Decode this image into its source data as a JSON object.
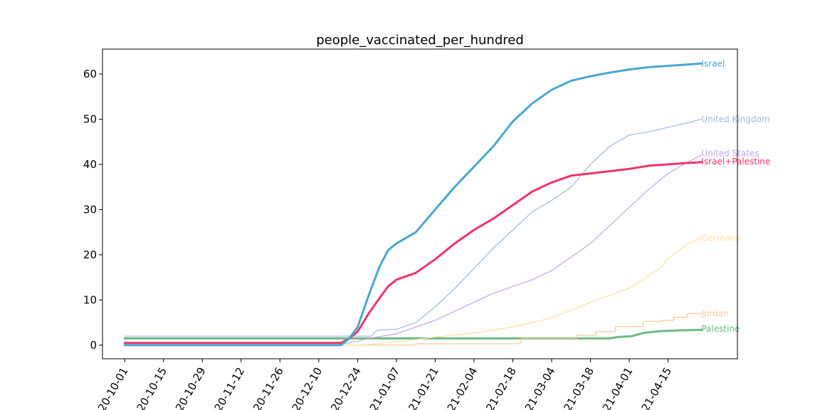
{
  "chart_data": {
    "type": "line",
    "title": "people_vaccinated_per_hundred",
    "xlabel": "",
    "ylabel": "",
    "x_range": [
      "2020-09-23",
      "2021-05-10"
    ],
    "ylim": [
      -3,
      65.5
    ],
    "x_ticks": [
      "2020-10-01",
      "2020-10-15",
      "2020-10-29",
      "2020-11-12",
      "2020-11-26",
      "2020-12-10",
      "2020-12-24",
      "2021-01-07",
      "2021-01-21",
      "2021-02-04",
      "2021-02-18",
      "2021-03-04",
      "2021-03-18",
      "2021-04-01",
      "2021-04-15"
    ],
    "y_ticks": [
      0,
      10,
      20,
      30,
      40,
      50,
      60
    ],
    "grid": false,
    "series": [
      {
        "name": "Palestine",
        "color": "#6dba82",
        "width": 3,
        "step": false,
        "points": [
          [
            "2020-10-01",
            1.5
          ],
          [
            "2021-01-01",
            1.5
          ],
          [
            "2021-02-01",
            1.5
          ],
          [
            "2021-03-10",
            1.5
          ],
          [
            "2021-03-25",
            1.5
          ],
          [
            "2021-03-28",
            1.8
          ],
          [
            "2021-04-02",
            2.0
          ],
          [
            "2021-04-06",
            2.7
          ],
          [
            "2021-04-12",
            3.1
          ],
          [
            "2021-04-20",
            3.3
          ],
          [
            "2021-04-27",
            3.4
          ]
        ]
      },
      {
        "name": "Jordan",
        "color": "#f9c99b",
        "width": 1.2,
        "step": true,
        "points": [
          [
            "2020-10-01",
            0.0
          ],
          [
            "2021-01-14",
            0.3
          ],
          [
            "2021-02-20",
            0.5
          ],
          [
            "2021-02-21",
            1.5
          ],
          [
            "2021-03-05",
            1.5
          ],
          [
            "2021-03-13",
            2.2
          ],
          [
            "2021-03-20",
            3.0
          ],
          [
            "2021-03-27",
            4.1
          ],
          [
            "2021-04-03",
            4.2
          ],
          [
            "2021-04-06",
            5.3
          ],
          [
            "2021-04-13",
            5.5
          ],
          [
            "2021-04-17",
            6.2
          ],
          [
            "2021-04-22",
            7.0
          ],
          [
            "2021-04-27",
            7.0
          ]
        ]
      },
      {
        "name": "Germany",
        "color": "#fde2a6",
        "width": 1.2,
        "step": false,
        "points": [
          [
            "2020-10-01",
            0.0
          ],
          [
            "2020-12-24",
            0.0
          ],
          [
            "2020-12-27",
            0.1
          ],
          [
            "2021-01-07",
            0.7
          ],
          [
            "2021-01-21",
            1.8
          ],
          [
            "2021-02-04",
            2.7
          ],
          [
            "2021-02-18",
            4.0
          ],
          [
            "2021-03-04",
            6.0
          ],
          [
            "2021-03-18",
            9.5
          ],
          [
            "2021-04-01",
            12.6
          ],
          [
            "2021-04-05",
            14.0
          ],
          [
            "2021-04-08",
            15.5
          ],
          [
            "2021-04-12",
            17.0
          ],
          [
            "2021-04-15",
            19.2
          ],
          [
            "2021-04-18",
            20.5
          ],
          [
            "2021-04-22",
            22.5
          ],
          [
            "2021-04-27",
            23.7
          ]
        ]
      },
      {
        "name": "United Kingdom",
        "color": "#9fb9e0",
        "width": 1.2,
        "step": false,
        "points": [
          [
            "2020-10-01",
            2.0
          ],
          [
            "2020-12-08",
            2.0
          ],
          [
            "2020-12-29",
            2.0
          ],
          [
            "2020-12-31",
            3.3
          ],
          [
            "2021-01-07",
            3.5
          ],
          [
            "2021-01-14",
            5.0
          ],
          [
            "2021-01-21",
            8.5
          ],
          [
            "2021-01-28",
            12.5
          ],
          [
            "2021-02-04",
            17.0
          ],
          [
            "2021-02-11",
            21.5
          ],
          [
            "2021-02-18",
            25.5
          ],
          [
            "2021-02-25",
            29.5
          ],
          [
            "2021-03-04",
            32.0
          ],
          [
            "2021-03-11",
            35.0
          ],
          [
            "2021-03-18",
            40.0
          ],
          [
            "2021-03-25",
            44.0
          ],
          [
            "2021-04-01",
            46.5
          ],
          [
            "2021-04-08",
            47.2
          ],
          [
            "2021-04-15",
            48.2
          ],
          [
            "2021-04-22",
            49.2
          ],
          [
            "2021-04-27",
            50.0
          ]
        ]
      },
      {
        "name": "United States",
        "color": "#c7a6e8",
        "width": 1.2,
        "step": false,
        "points": [
          [
            "2020-10-01",
            0.0
          ],
          [
            "2020-12-14",
            0.0
          ],
          [
            "2020-12-21",
            0.5
          ],
          [
            "2020-12-28",
            1.5
          ],
          [
            "2021-01-07",
            2.5
          ],
          [
            "2021-01-14",
            4.0
          ],
          [
            "2021-01-21",
            5.5
          ],
          [
            "2021-01-28",
            7.5
          ],
          [
            "2021-02-04",
            9.5
          ],
          [
            "2021-02-11",
            11.5
          ],
          [
            "2021-02-18",
            13.0
          ],
          [
            "2021-02-25",
            14.5
          ],
          [
            "2021-03-04",
            16.5
          ],
          [
            "2021-03-11",
            19.5
          ],
          [
            "2021-03-18",
            22.5
          ],
          [
            "2021-03-25",
            26.5
          ],
          [
            "2021-04-01",
            30.5
          ],
          [
            "2021-04-08",
            34.5
          ],
          [
            "2021-04-15",
            38.0
          ],
          [
            "2021-04-22",
            40.5
          ],
          [
            "2021-04-27",
            42.0
          ]
        ]
      },
      {
        "name": "Israel+Palestine",
        "color": "#f0336a",
        "width": 3,
        "step": false,
        "points": [
          [
            "2020-10-01",
            0.5
          ],
          [
            "2020-12-18",
            0.5
          ],
          [
            "2020-12-21",
            1.5
          ],
          [
            "2020-12-24",
            3.0
          ],
          [
            "2020-12-28",
            7.0
          ],
          [
            "2021-01-01",
            10.5
          ],
          [
            "2021-01-04",
            13.0
          ],
          [
            "2021-01-07",
            14.5
          ],
          [
            "2021-01-14",
            16.0
          ],
          [
            "2021-01-21",
            19.0
          ],
          [
            "2021-01-28",
            22.5
          ],
          [
            "2021-02-04",
            25.5
          ],
          [
            "2021-02-11",
            28.0
          ],
          [
            "2021-02-18",
            31.0
          ],
          [
            "2021-02-25",
            34.0
          ],
          [
            "2021-03-04",
            36.0
          ],
          [
            "2021-03-11",
            37.5
          ],
          [
            "2021-03-18",
            38.0
          ],
          [
            "2021-03-25",
            38.5
          ],
          [
            "2021-04-01",
            39.0
          ],
          [
            "2021-04-08",
            39.7
          ],
          [
            "2021-04-15",
            40.0
          ],
          [
            "2021-04-22",
            40.3
          ],
          [
            "2021-04-27",
            40.5
          ]
        ]
      },
      {
        "name": "Israel",
        "color": "#4aa6d2",
        "width": 3,
        "step": false,
        "points": [
          [
            "2020-10-01",
            0.0
          ],
          [
            "2020-12-18",
            0.0
          ],
          [
            "2020-12-21",
            1.5
          ],
          [
            "2020-12-24",
            4.0
          ],
          [
            "2020-12-28",
            11.0
          ],
          [
            "2021-01-01",
            17.5
          ],
          [
            "2021-01-04",
            21.0
          ],
          [
            "2021-01-07",
            22.5
          ],
          [
            "2021-01-14",
            25.0
          ],
          [
            "2021-01-21",
            30.0
          ],
          [
            "2021-01-28",
            35.0
          ],
          [
            "2021-02-04",
            39.5
          ],
          [
            "2021-02-11",
            44.0
          ],
          [
            "2021-02-18",
            49.5
          ],
          [
            "2021-02-25",
            53.5
          ],
          [
            "2021-03-04",
            56.5
          ],
          [
            "2021-03-11",
            58.5
          ],
          [
            "2021-03-18",
            59.5
          ],
          [
            "2021-03-25",
            60.3
          ],
          [
            "2021-04-01",
            61.0
          ],
          [
            "2021-04-08",
            61.5
          ],
          [
            "2021-04-15",
            61.8
          ],
          [
            "2021-04-22",
            62.1
          ],
          [
            "2021-04-27",
            62.3
          ]
        ]
      }
    ],
    "labels": [
      {
        "text": "Israel",
        "color": "#4aa6d2",
        "x": "2021-04-27",
        "y": 62.3
      },
      {
        "text": "United Kingdom",
        "color": "#9fb9e0",
        "x": "2021-04-27",
        "y": 50.0
      },
      {
        "text": "United States",
        "color": "#c7a6e8",
        "x": "2021-04-27",
        "y": 42.4
      },
      {
        "text": "Israel+Palestine",
        "color": "#f0336a",
        "x": "2021-04-27",
        "y": 40.6
      },
      {
        "text": "Germany",
        "color": "#fde2a6",
        "x": "2021-04-27",
        "y": 23.7
      },
      {
        "text": "Jordan",
        "color": "#f9c99b",
        "x": "2021-04-27",
        "y": 7.0
      },
      {
        "text": "Palestine",
        "color": "#6dba82",
        "x": "2021-04-27",
        "y": 3.6
      }
    ]
  }
}
